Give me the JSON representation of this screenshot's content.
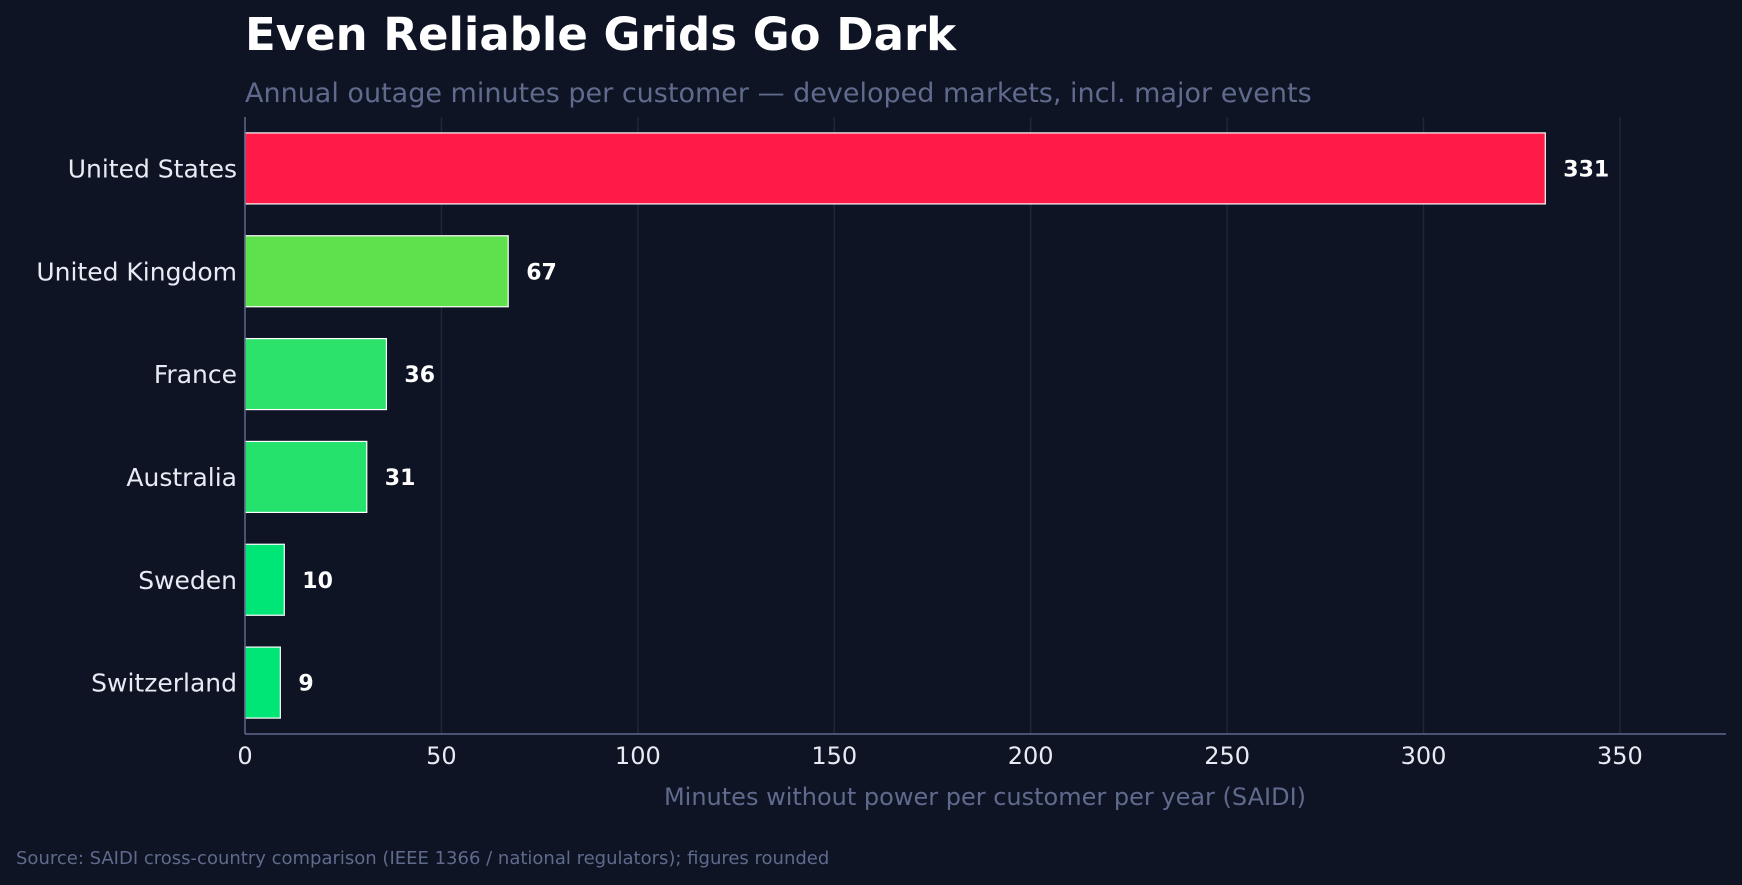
{
  "chart_data": {
    "type": "bar",
    "orientation": "horizontal",
    "title": "Even Reliable Grids Go Dark",
    "subtitle": "Annual outage minutes per customer — developed markets, incl. major events",
    "xlabel": "Minutes without power per customer per year (SAIDI)",
    "ylabel": "",
    "source": "Source: SAIDI cross-country comparison (IEEE 1366 / national regulators); figures rounded",
    "categories": [
      "United States",
      "United Kingdom",
      "France",
      "Australia",
      "Sweden",
      "Switzerland"
    ],
    "values": [
      331,
      67,
      36,
      31,
      10,
      9
    ],
    "value_labels": [
      "331",
      "67",
      "36",
      "31",
      "10",
      "9"
    ],
    "colors": [
      "#ff1a47",
      "#5fe04d",
      "#2de26a",
      "#24e26b",
      "#00e676",
      "#00e676"
    ],
    "xlim": [
      0,
      377
    ],
    "xticks": [
      0,
      50,
      100,
      150,
      200,
      250,
      300,
      350
    ],
    "xtick_labels": [
      "0",
      "50",
      "100",
      "150",
      "200",
      "250",
      "300",
      "350"
    ],
    "grid": "vertical",
    "legend": "none"
  },
  "theme": {
    "background": "#0e1424",
    "grid_color": "#1f2738",
    "axis_color": "#5f6a8c",
    "bar_edge": "#ffffff"
  }
}
